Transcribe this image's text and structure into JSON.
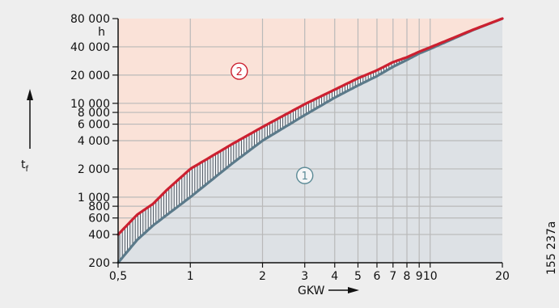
{
  "chart_data": {
    "type": "line",
    "xlabel": "GKW",
    "ylabel": "t",
    "ylabel_sub": "f",
    "yunit": "h",
    "figure_id": "155 237a",
    "x_scale": "log",
    "y_scale": "log",
    "xlim": [
      0.5,
      20
    ],
    "ylim": [
      200,
      80000
    ],
    "grid": true,
    "x_ticks": [
      {
        "value": 0.5,
        "label": "0,5"
      },
      {
        "value": 1,
        "label": "1"
      },
      {
        "value": 2,
        "label": "2"
      },
      {
        "value": 3,
        "label": "3"
      },
      {
        "value": 4,
        "label": "4"
      },
      {
        "value": 5,
        "label": "5"
      },
      {
        "value": 6,
        "label": "6"
      },
      {
        "value": 7,
        "label": "7"
      },
      {
        "value": 8,
        "label": "8"
      },
      {
        "value": 9,
        "label": "9"
      },
      {
        "value": 10,
        "label": "10"
      },
      {
        "value": 20,
        "label": "20"
      }
    ],
    "y_ticks": [
      {
        "value": 200,
        "label": "200"
      },
      {
        "value": 400,
        "label": "400"
      },
      {
        "value": 600,
        "label": "600"
      },
      {
        "value": 800,
        "label": "800"
      },
      {
        "value": 1000,
        "label": "1 000"
      },
      {
        "value": 2000,
        "label": "2 000"
      },
      {
        "value": 4000,
        "label": "4 000"
      },
      {
        "value": 6000,
        "label": "6 000"
      },
      {
        "value": 8000,
        "label": "8 000"
      },
      {
        "value": 10000,
        "label": "10 000"
      },
      {
        "value": 20000,
        "label": "20 000"
      },
      {
        "value": 40000,
        "label": "40 000"
      },
      {
        "value": 80000,
        "label": "80 000"
      }
    ],
    "series": [
      {
        "x": [
          0.5,
          0.6,
          0.7,
          0.8,
          1,
          1.5,
          2,
          3,
          4,
          5,
          6,
          7,
          8,
          9,
          10,
          15,
          20
        ],
        "y": [
          200,
          350,
          500,
          650,
          1000,
          2300,
          4000,
          7500,
          11500,
          15500,
          19500,
          24500,
          29000,
          34000,
          38000,
          60000,
          80000
        ],
        "color": "#5b7a8a"
      },
      {
        "x": [
          0.5,
          0.6,
          0.7,
          0.8,
          1,
          1.5,
          2,
          3,
          4,
          5,
          6,
          7,
          8,
          9,
          10,
          15,
          20
        ],
        "y": [
          400,
          650,
          850,
          1200,
          2000,
          3700,
          5600,
          9800,
          14000,
          18500,
          22500,
          27500,
          31000,
          35500,
          39500,
          60500,
          80000
        ],
        "color": "#cc2030"
      }
    ],
    "regions": [
      {
        "label": "1",
        "fill": "#dde1e5",
        "marker_x": 3,
        "marker_y": 1700,
        "marker_color": "#5b8a96"
      },
      {
        "label": "2",
        "fill": "#fae2d8",
        "marker_x": 1.6,
        "marker_y": 22000,
        "marker_color": "#cc2030"
      }
    ]
  }
}
